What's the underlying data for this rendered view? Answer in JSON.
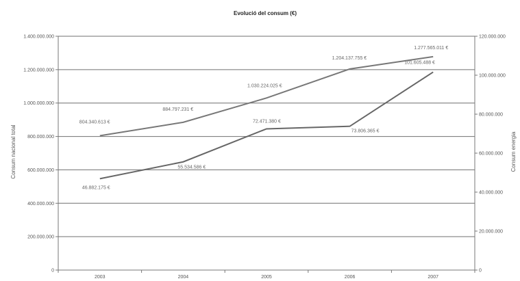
{
  "chart_data": {
    "type": "line",
    "title": "Evolució del consum (€)",
    "categories": [
      "2003",
      "2004",
      "2005",
      "2006",
      "2007"
    ],
    "y_left": {
      "label": "Consum nacional total",
      "ylim": [
        0,
        1400000000
      ],
      "ticks": [
        0,
        200000000,
        400000000,
        600000000,
        800000000,
        1000000000,
        1200000000,
        1400000000
      ],
      "tick_labels": [
        "0",
        "200.000.000",
        "400.000.000",
        "600.000.000",
        "800.000.000",
        "1.000.000.000",
        "1.200.000.000",
        "1.400.000.000"
      ]
    },
    "y_right": {
      "label": "Consum energia",
      "ylim": [
        0,
        120000000
      ],
      "ticks": [
        0,
        20000000,
        40000000,
        60000000,
        80000000,
        100000000,
        120000000
      ],
      "tick_labels": [
        "0",
        "20.000.000",
        "40.000.000",
        "60.000.000",
        "80.000.000",
        "100.000.000",
        "120.000.000"
      ]
    },
    "series": [
      {
        "axis": "left",
        "values": [
          804340613,
          884797231,
          1030224025,
          1204137755,
          1277565011
        ],
        "labels": [
          "804.340.613 €",
          "884.797.231 €",
          "1.030.224.025 €",
          "1.204.137.755 €",
          "1.277.565.011 €"
        ],
        "color": "#777777"
      },
      {
        "axis": "right",
        "values": [
          46882175,
          55534586,
          72471380,
          73806365,
          101605488
        ],
        "labels": [
          "46.882.175 €",
          "55.534.586 €",
          "72.471.380 €",
          "73.806.365 €",
          "101.605.488 €"
        ],
        "color": "#666666"
      }
    ],
    "grid": true,
    "legend": "none"
  }
}
